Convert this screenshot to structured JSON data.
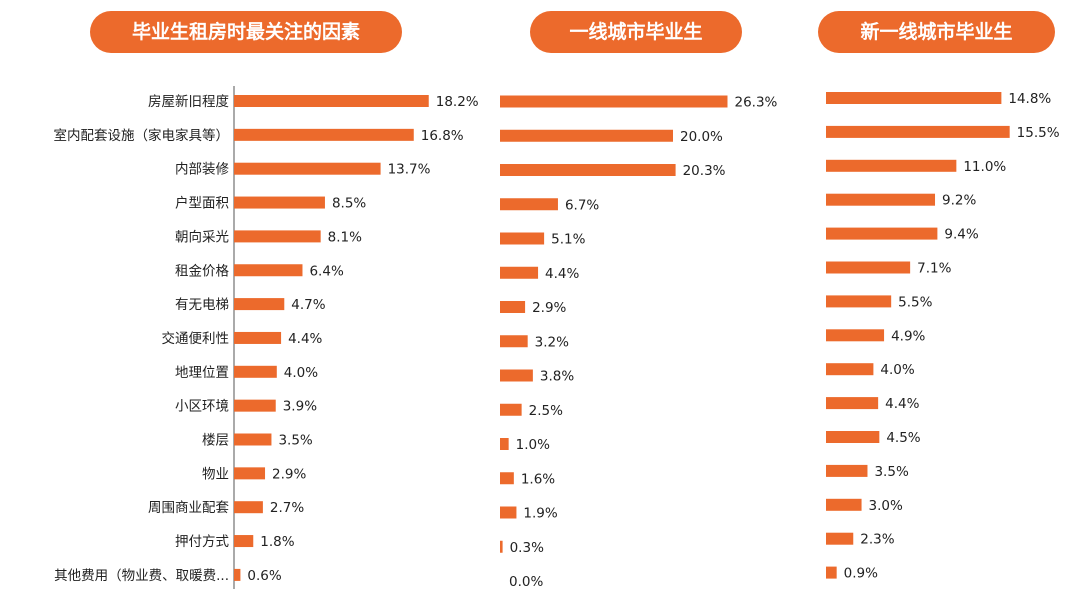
{
  "colors": {
    "accent": "#ec6a2c",
    "bar": "#ec6a2c",
    "axis": "#555555",
    "text": "#222222"
  },
  "chart_data": {
    "type": "bar",
    "orientation": "horizontal",
    "categories": [
      "房屋新旧程度",
      "室内配套设施（家电家具等）",
      "内部装修",
      "户型面积",
      "朝向采光",
      "租金价格",
      "有无电梯",
      "交通便利性",
      "地理位置",
      "小区环境",
      "楼层",
      "物业",
      "周围商业配套",
      "押付方式",
      "其他费用（物业费、取暖费..."
    ],
    "panels": [
      {
        "title": "毕业生租房时最关注的因素",
        "values": [
          18.2,
          16.8,
          13.7,
          8.5,
          8.1,
          6.4,
          4.7,
          4.4,
          4.0,
          3.9,
          3.5,
          2.9,
          2.7,
          1.8,
          0.6
        ],
        "labels": [
          "18.2%",
          "16.8%",
          "13.7%",
          "8.5%",
          "8.1%",
          "6.4%",
          "4.7%",
          "4.4%",
          "4.0%",
          "3.9%",
          "3.5%",
          "2.9%",
          "2.7%",
          "1.8%",
          "0.6%"
        ]
      },
      {
        "title": "一线城市毕业生",
        "values": [
          26.3,
          20.0,
          20.3,
          6.7,
          5.1,
          4.4,
          2.9,
          3.2,
          3.8,
          2.5,
          1.0,
          1.6,
          1.9,
          0.3,
          0.0
        ],
        "labels": [
          "26.3%",
          "20.0%",
          "20.3%",
          "6.7%",
          "5.1%",
          "4.4%",
          "2.9%",
          "3.2%",
          "3.8%",
          "2.5%",
          "1.0%",
          "1.6%",
          "1.9%",
          "0.3%",
          "0.0%"
        ]
      },
      {
        "title": "新一线城市毕业生",
        "values": [
          14.8,
          15.5,
          11.0,
          9.2,
          9.4,
          7.1,
          5.5,
          4.9,
          4.0,
          4.4,
          4.5,
          3.5,
          3.0,
          2.3,
          0.9
        ],
        "labels": [
          "14.8%",
          "15.5%",
          "11.0%",
          "9.2%",
          "9.4%",
          "7.1%",
          "5.5%",
          "4.9%",
          "4.0%",
          "4.4%",
          "4.5%",
          "3.5%",
          "3.0%",
          "2.3%",
          "0.9%"
        ]
      }
    ]
  }
}
